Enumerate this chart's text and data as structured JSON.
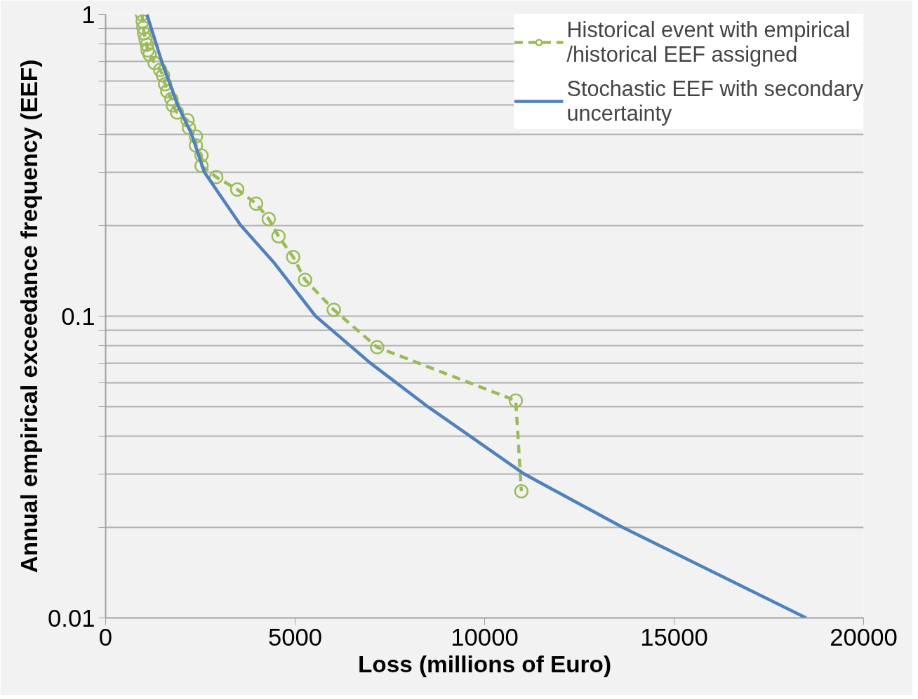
{
  "chart_data": {
    "type": "line",
    "xlabel": "Loss (millions of Euro)",
    "ylabel": "Annual empirical exceedance frequency (EEF)",
    "log": "y",
    "xlim": [
      0,
      20000
    ],
    "xticks": [
      0,
      5000,
      10000,
      15000,
      20000
    ],
    "ylim": [
      0.01,
      1
    ],
    "yticks": [
      {
        "value": 0.01,
        "label": "0.01"
      },
      {
        "value": 0.02,
        "label": null
      },
      {
        "value": 0.03,
        "label": null
      },
      {
        "value": 0.04,
        "label": null
      },
      {
        "value": 0.05,
        "label": null
      },
      {
        "value": 0.06,
        "label": null
      },
      {
        "value": 0.07,
        "label": null
      },
      {
        "value": 0.08,
        "label": null
      },
      {
        "value": 0.09,
        "label": null
      },
      {
        "value": 0.1,
        "label": "0.1"
      },
      {
        "value": 0.2,
        "label": null
      },
      {
        "value": 0.3,
        "label": null
      },
      {
        "value": 0.4,
        "label": null
      },
      {
        "value": 0.5,
        "label": null
      },
      {
        "value": 0.6,
        "label": null
      },
      {
        "value": 0.7,
        "label": null
      },
      {
        "value": 0.8,
        "label": null
      },
      {
        "value": 0.9,
        "label": null
      },
      {
        "value": 1,
        "label": "1"
      }
    ],
    "grid": "y",
    "legend": "top right",
    "series": [
      {
        "name": "Historical event with empirical /historical EEF assigned",
        "color": "#9bbb59",
        "marker": "circle",
        "line_style": "dashed",
        "x": [
          960,
          979,
          997,
          1016,
          1053,
          1090,
          1108,
          1163,
          1293,
          1440,
          1514,
          1570,
          1625,
          1736,
          1773,
          1884,
          2161,
          2197,
          2382,
          2382,
          2530,
          2530,
          2918,
          3472,
          3970,
          4303,
          4561,
          4949,
          5263,
          6020,
          7165,
          10822,
          10970
        ],
        "values": [
          1.0,
          0.948,
          0.903,
          0.865,
          0.828,
          0.793,
          0.76,
          0.736,
          0.69,
          0.654,
          0.628,
          0.587,
          0.556,
          0.524,
          0.499,
          0.473,
          0.446,
          0.421,
          0.394,
          0.368,
          0.341,
          0.315,
          0.289,
          0.263,
          0.236,
          0.21,
          0.184,
          0.157,
          0.132,
          0.105,
          0.0789,
          0.0525,
          0.0263
        ]
      },
      {
        "name": "Stochastic EEF with secondary uncertainty",
        "color": "#4f81bd",
        "marker": "none",
        "line_style": "solid",
        "x": [
          1090,
          1477,
          1902,
          2271,
          2604,
          3564,
          4451,
          5540,
          6981,
          8513,
          9621,
          11043,
          13629,
          18486
        ],
        "values": [
          1.0,
          0.7,
          0.5,
          0.4,
          0.3,
          0.2,
          0.15,
          0.1,
          0.07,
          0.05,
          0.04,
          0.03,
          0.02,
          0.01
        ]
      }
    ]
  }
}
